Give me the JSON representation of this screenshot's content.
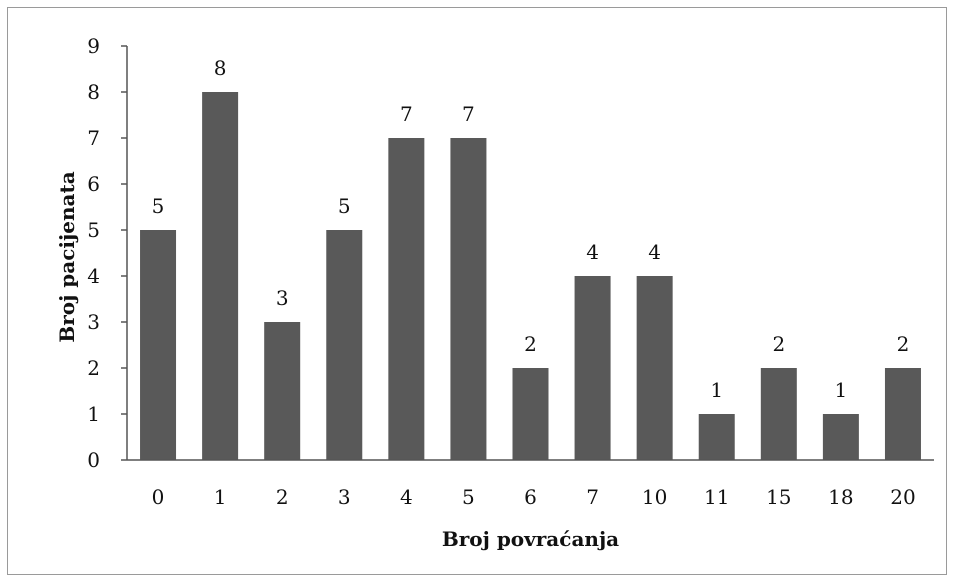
{
  "chart_data": {
    "type": "bar",
    "categories": [
      "0",
      "1",
      "2",
      "3",
      "4",
      "5",
      "6",
      "7",
      "10",
      "11",
      "15",
      "18",
      "20"
    ],
    "values": [
      5,
      8,
      3,
      5,
      7,
      7,
      2,
      4,
      4,
      1,
      2,
      1,
      2
    ],
    "xlabel": "Broj povraćanja",
    "ylabel": "Broj pacijenata",
    "ylim": [
      0,
      9
    ],
    "yticks": [
      "0",
      "1",
      "2",
      "3",
      "4",
      "5",
      "6",
      "7",
      "8",
      "9"
    ],
    "grid": false,
    "legend": "none",
    "bar_color": "#595959"
  }
}
